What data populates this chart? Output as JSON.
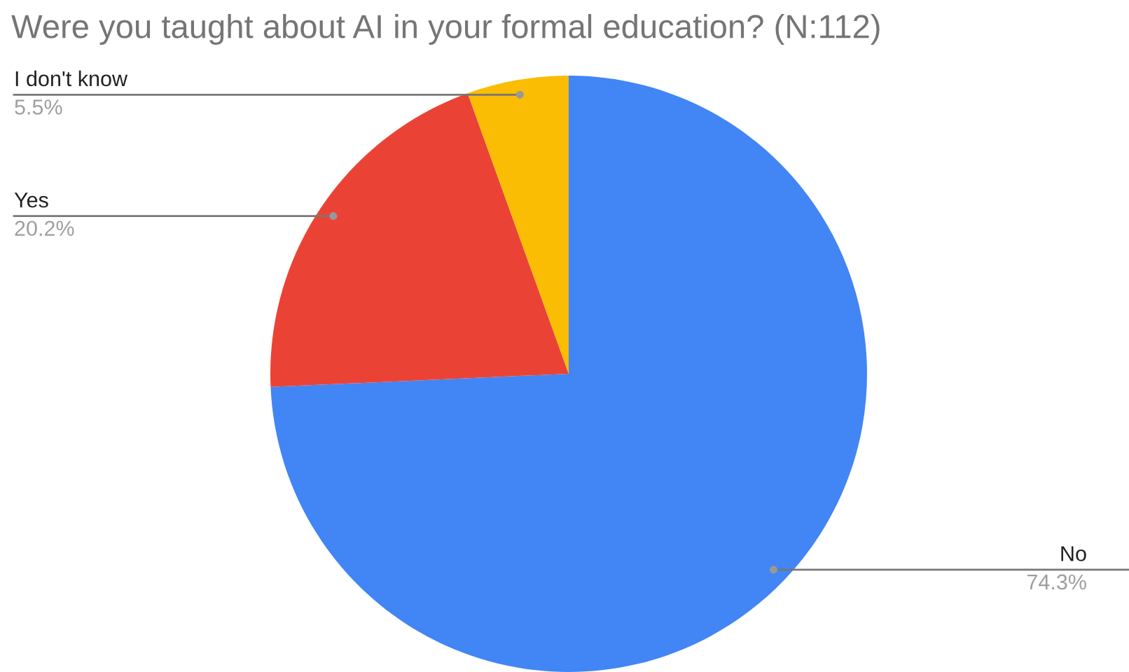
{
  "chart_data": {
    "type": "pie",
    "title": "Were you taught about AI in your formal education? (N:112)",
    "categories": [
      "No",
      "Yes",
      "I don't know"
    ],
    "values": [
      74.3,
      20.2,
      5.5
    ],
    "value_labels": [
      "74.3%",
      "20.2%",
      "5.5%"
    ],
    "colors": [
      "#4285f4",
      "#ea4335",
      "#fbbc04"
    ],
    "legend": false
  }
}
